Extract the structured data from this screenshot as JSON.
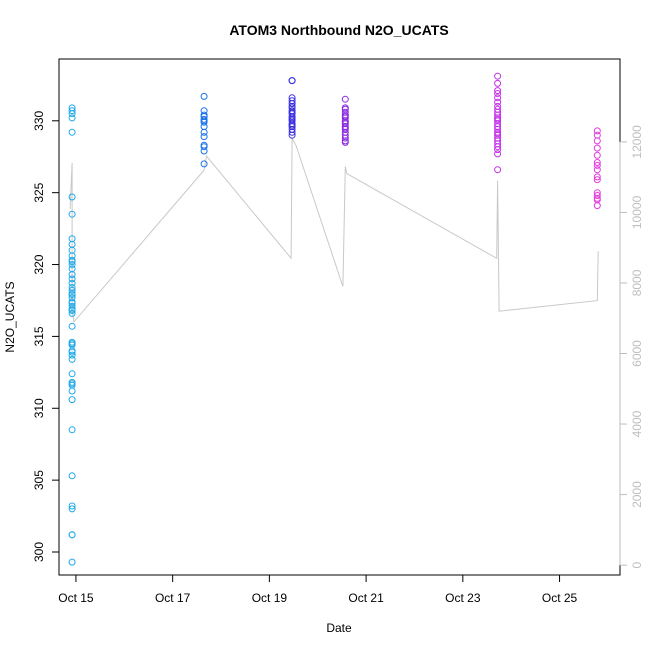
{
  "chart_data": {
    "type": "scatter",
    "title": "ATOM3 Northbound N2O_UCATS",
    "xlabel": "Date",
    "ylabel": "N2O_UCATS",
    "xlim": [
      14.65,
      26.25
    ],
    "ylim": [
      298.4,
      334.3
    ],
    "y2lim": [
      -280,
      14350
    ],
    "x_ticks": [
      {
        "value": 15,
        "label": "Oct 15"
      },
      {
        "value": 17,
        "label": "Oct 17"
      },
      {
        "value": 19,
        "label": "Oct 19"
      },
      {
        "value": 21,
        "label": "Oct 21"
      },
      {
        "value": 23,
        "label": "Oct 23"
      },
      {
        "value": 25,
        "label": "Oct 25"
      }
    ],
    "y_ticks": [
      300,
      305,
      310,
      315,
      320,
      325,
      330
    ],
    "y2_ticks": [
      0,
      2000,
      4000,
      6000,
      8000,
      10000,
      12000
    ],
    "colors": {
      "axis": "#000000",
      "right_axis": "#bebebe",
      "altitude_line": "#c8c8c8"
    },
    "series": [
      {
        "color": "#1fa9e6",
        "x": [
          14.92,
          14.92,
          14.92,
          14.92,
          14.92,
          14.92,
          14.92,
          14.92,
          14.92,
          14.92,
          14.92,
          14.92,
          14.92,
          14.92,
          14.92,
          14.92,
          14.92,
          14.92,
          14.92,
          14.92,
          14.92,
          14.92,
          14.92,
          14.92,
          14.92,
          14.92,
          14.92,
          14.92,
          14.92,
          14.92,
          14.92,
          14.92,
          14.92,
          14.92,
          14.92,
          14.92,
          14.92,
          14.92,
          14.92,
          14.92,
          14.92,
          14.92,
          14.92,
          14.92,
          14.92,
          14.92,
          14.92,
          14.92,
          14.92,
          14.92
        ],
        "y": [
          330.9,
          330.7,
          330.5,
          330.2,
          329.2,
          324.7,
          323.5,
          321.8,
          321.4,
          321.0,
          320.6,
          320.3,
          320.0,
          319.7,
          319.3,
          319.0,
          318.7,
          318.4,
          318.0,
          317.7,
          317.4,
          317.1,
          316.8,
          316.6,
          315.7,
          314.6,
          314.4,
          314.0,
          313.7,
          313.4,
          312.4,
          311.8,
          311.6,
          311.2,
          310.6,
          308.5,
          305.3,
          303.2,
          303.0,
          301.2,
          301.2,
          299.3,
          318.2,
          317.3,
          316.9,
          314.5,
          313.9,
          311.7,
          317.9,
          320.2
        ]
      },
      {
        "color": "#1a73ec",
        "x": [
          17.65,
          17.65,
          17.65,
          17.65,
          17.65,
          17.65,
          17.65,
          17.65,
          17.65,
          17.65,
          17.65,
          17.65,
          17.65,
          17.65
        ],
        "y": [
          331.7,
          330.7,
          330.3,
          330.1,
          330.0,
          329.9,
          329.6,
          329.2,
          328.9,
          328.3,
          328.2,
          327.9,
          327.0,
          330.4
        ]
      },
      {
        "color": "#3a2fe0",
        "x": [
          19.47,
          19.47,
          19.47,
          19.47,
          19.47,
          19.47,
          19.47,
          19.47,
          19.47,
          19.47,
          19.47,
          19.47,
          19.47,
          19.47,
          19.47,
          19.47,
          19.47,
          19.47,
          19.47,
          19.47
        ],
        "y": [
          332.8,
          332.8,
          331.6,
          331.4,
          331.2,
          330.9,
          330.7,
          330.5,
          330.3,
          330.1,
          330.0,
          329.8,
          329.6,
          329.4,
          329.2,
          329.0,
          331.0,
          330.6,
          330.2,
          329.7
        ]
      },
      {
        "color": "#8a2be2",
        "x": [
          20.57,
          20.57,
          20.57,
          20.57,
          20.57,
          20.57,
          20.57,
          20.57,
          20.57,
          20.57,
          20.57,
          20.57,
          20.57,
          20.57,
          20.57,
          20.57,
          20.57,
          20.57
        ],
        "y": [
          331.5,
          330.8,
          330.6,
          330.4,
          330.2,
          330.0,
          329.8,
          329.6,
          329.4,
          329.2,
          329.0,
          328.8,
          328.6,
          328.5,
          330.9,
          330.3,
          329.9,
          329.5
        ]
      },
      {
        "color": "#c431e8",
        "x": [
          23.72,
          23.72,
          23.72,
          23.72,
          23.72,
          23.72,
          23.72,
          23.72,
          23.72,
          23.72,
          23.72,
          23.72,
          23.72,
          23.72,
          23.72,
          23.72,
          23.72,
          23.72,
          23.72,
          23.72,
          23.72,
          23.72,
          23.72,
          23.72,
          23.72,
          23.72
        ],
        "y": [
          333.1,
          332.6,
          332.1,
          331.6,
          331.3,
          331.0,
          330.8,
          330.6,
          330.4,
          330.2,
          330.0,
          329.8,
          329.6,
          329.4,
          329.2,
          329.0,
          328.8,
          328.6,
          328.4,
          328.2,
          328.0,
          327.7,
          326.6,
          331.9,
          330.1,
          329.1
        ]
      },
      {
        "color": "#e63be0",
        "x": [
          25.78,
          25.78,
          25.78,
          25.78,
          25.78,
          25.78,
          25.78,
          25.78,
          25.78,
          25.78,
          25.78,
          25.78,
          25.78,
          25.78,
          25.78
        ],
        "y": [
          329.3,
          329.0,
          328.6,
          328.1,
          327.6,
          327.1,
          326.9,
          326.6,
          326.1,
          325.9,
          325.0,
          324.8,
          324.6,
          324.5,
          324.1
        ]
      }
    ],
    "altitude": {
      "x": [
        14.88,
        14.92,
        14.92,
        14.96,
        17.65,
        17.7,
        19.45,
        19.47,
        19.55,
        20.52,
        20.57,
        20.6,
        23.7,
        23.72,
        23.75,
        25.78,
        25.8
      ],
      "y": [
        10100,
        11400,
        7200,
        6900,
        11200,
        11600,
        8700,
        12100,
        11900,
        7900,
        11300,
        11100,
        8700,
        10900,
        7200,
        7500,
        8900
      ]
    }
  }
}
